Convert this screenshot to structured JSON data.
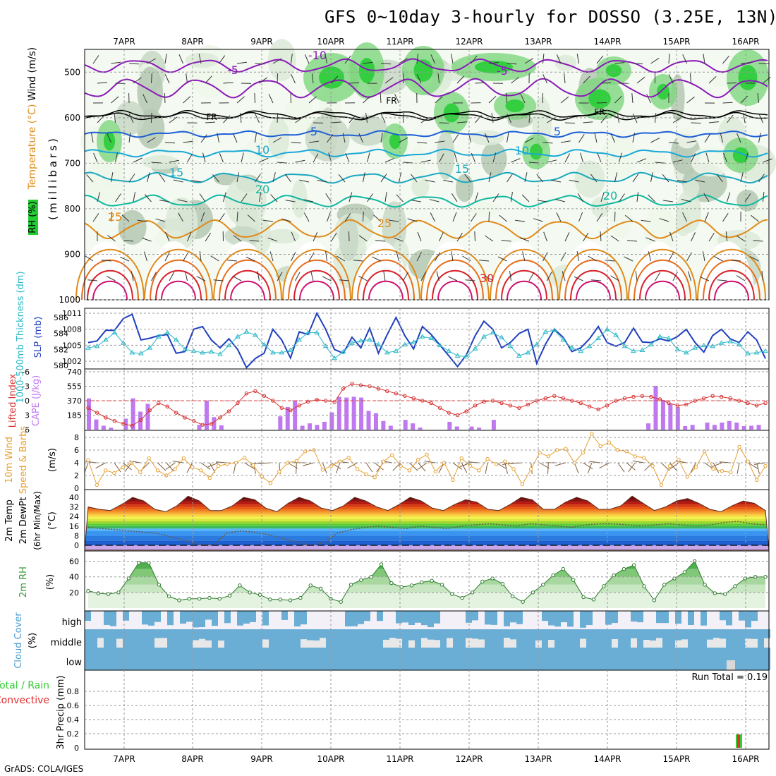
{
  "title": "GFS 0~10day 3-hourly for DOSSO (3.25E, 13N)",
  "credit": "GrADS: COLA/IGES",
  "colors": {
    "rh_green": "#22cc33",
    "temp_purple": "#8a1ab8",
    "temp_blue": "#1f5fd6",
    "temp_cyan": "#19a8d8",
    "temp_teal": "#10b8a0",
    "temp_orange": "#e08a1a",
    "temp_red": "#d8202a",
    "temp_magenta": "#d01070",
    "slp_blue": "#1f3fbf",
    "thick_cyan": "#2ab8c8",
    "cape_purple": "#c078f0",
    "li_red": "#d83030",
    "wind_orange": "#e8a030",
    "rh2m_green": "#3a9a3a",
    "cloud_blue": "#6aaed6",
    "precip_green": "#33cc33",
    "precip_red": "#e03030"
  },
  "chart_data": [
    {
      "type": "contour",
      "panel": "upper_air",
      "ylabel": "(millibars)",
      "legend_labels": [
        "Temperature (°C)",
        "Wind (m/s)",
        "RH (%)"
      ],
      "y_ticks": [
        "500",
        "600",
        "700",
        "800",
        "900",
        "1000"
      ],
      "x_dates": [
        "7APR",
        "8APR",
        "9APR",
        "10APR",
        "11APR",
        "12APR",
        "13APR",
        "14APR",
        "15APR",
        "16APR"
      ],
      "temperature_isotherm_labels": [
        "-10",
        "-5",
        "-5",
        "FR",
        "FR",
        "FR",
        "5",
        "5",
        "10",
        "10",
        "15",
        "15",
        "20",
        "20",
        "25",
        "25",
        "30"
      ],
      "ylim": [
        450,
        1000
      ]
    },
    {
      "type": "line",
      "panel": "slp_thickness",
      "ylabel_left": "1000-500mb Thickness (dm)",
      "ylabel_right": "SLP (mb)",
      "left_ticks": [
        "586",
        "584",
        "582",
        "580"
      ],
      "right_ticks": [
        "1011",
        "1008",
        "1005",
        "1002"
      ],
      "series": [
        {
          "name": "SLP (mb)",
          "values": [
            1005.5,
            1005.8,
            1007.8,
            1007.8,
            1010.0,
            1010.8,
            1006.0,
            1006.3,
            1006.8,
            1007.0,
            1003.5,
            1003.8,
            1008.0,
            1008.5,
            1006.0,
            1004.5,
            1006.2,
            1004.2,
            1000.8,
            1002.5,
            1003.5,
            1008.0,
            1006.0,
            1002.6,
            1007.5,
            1007.0,
            1011.0,
            1008.0,
            1004.2,
            1003.5,
            1006.5,
            1004.5,
            1008.2,
            1003.5,
            1007.0,
            1010.2,
            1006.8,
            1004.3,
            1008.5,
            1007.0,
            1005.0,
            1003.0,
            1001.0,
            1003.2,
            1006.8,
            1009.5,
            1008.0,
            1004.5,
            1005.5,
            1007.2,
            1008.0,
            1001.6,
            1005.2,
            1008.0,
            1006.5,
            1003.8,
            1004.5,
            1006.2,
            1008.5,
            1005.5,
            1004.8,
            1005.5,
            1008.2,
            1005.6,
            1005.5,
            1006.2,
            1005.8,
            1006.6,
            1008.0,
            1005.5,
            1003.7,
            1006.8,
            1008.0,
            1006.2,
            1005.5,
            1007.5,
            1006.0,
            1002.5
          ]
        },
        {
          "name": "Thickness (dm)",
          "values": [
            582.2,
            582.4,
            583.2,
            584.1,
            582.8,
            581.6,
            581.5,
            582.2,
            583.6,
            584.1,
            583.2,
            582.0,
            581.8,
            581.6,
            581.7,
            581.4,
            582.5,
            583.6,
            584.2,
            583.8,
            582.6,
            581.6,
            581.6,
            581.9,
            583.2,
            584.1,
            584.1,
            582.4,
            580.9,
            581.7,
            582.8,
            583.1,
            583.2,
            582.6,
            581.6,
            581.8,
            582.6,
            582.9,
            583.6,
            583.4,
            582.5,
            581.8,
            581.2,
            581.1,
            582.1,
            583.6,
            584.1,
            583.5,
            582.4,
            581.2,
            581.6,
            582.6,
            584.2,
            584.4,
            583.2,
            582.2,
            581.8,
            582.4,
            583.4,
            584.5,
            583.8,
            582.4,
            581.8,
            581.9,
            582.6,
            583.6,
            583.4,
            582.0,
            581.6,
            582.2,
            582.5,
            582.4,
            582.8,
            583.0,
            582.6,
            581.5,
            581.6,
            581.8
          ]
        }
      ]
    },
    {
      "type": "bar",
      "panel": "cape_li",
      "ylabel_left": "Lifted Index",
      "ylabel_right": "CAPE (J/kg)",
      "left_ticks": [
        "-6",
        "-3",
        "0",
        "3",
        "6"
      ],
      "right_ticks": [
        "740",
        "555",
        "370",
        "185"
      ],
      "series": [
        {
          "name": "CAPE (J/kg)",
          "values": [
            400,
            130,
            50,
            25,
            0,
            140,
            400,
            230,
            330,
            0,
            0,
            0,
            0,
            0,
            0,
            60,
            370,
            160,
            55,
            0,
            0,
            0,
            0,
            0,
            0,
            0,
            170,
            290,
            370,
            50,
            80,
            60,
            100,
            220,
            420,
            410,
            420,
            410,
            240,
            210,
            110,
            50,
            0,
            125,
            80,
            25,
            0,
            0,
            0,
            100,
            40,
            0,
            40,
            25,
            0,
            125,
            0,
            0,
            0,
            0,
            0,
            0,
            0,
            0,
            0,
            0,
            0,
            0,
            0,
            0,
            0,
            0,
            0,
            0,
            0,
            0,
            80,
            560,
            380,
            330,
            290,
            45,
            60,
            0,
            90,
            60,
            90,
            110,
            90,
            45,
            50,
            60,
            0
          ]
        },
        {
          "name": "Lifted Index",
          "values": [
            1.5,
            2.5,
            3.5,
            4.2,
            4.8,
            5.2,
            4.0,
            2.0,
            0.5,
            1.2,
            2.5,
            3.5,
            4.2,
            5.0,
            4.8,
            3.5,
            2.2,
            0.5,
            -1.5,
            -2.0,
            -1.0,
            0.0,
            1.5,
            2.0,
            1.0,
            0.2,
            -0.2,
            0.0,
            0.3,
            -2.5,
            -3.5,
            -3.2,
            -3.0,
            -2.5,
            -2.0,
            -1.5,
            -1.0,
            -0.5,
            0.0,
            0.5,
            1.5,
            2.5,
            3.0,
            2.2,
            1.0,
            0.2,
            0.0,
            0.5,
            1.0,
            1.5,
            0.8,
            0.0,
            -0.5,
            -1.0,
            -0.5,
            0.0,
            0.5,
            1.2,
            1.8,
            1.0,
            0.0,
            -0.5,
            -0.8,
            -1.0,
            -0.8,
            -0.3,
            0.5,
            1.0,
            0.8,
            0.0,
            -0.5,
            -1.0,
            -0.8,
            -0.5,
            0.0,
            0.5,
            1.0,
            0.5
          ]
        }
      ]
    },
    {
      "type": "line",
      "panel": "wind10m",
      "ylabel": "10m Wind Speed & Barbs (m/s)",
      "y_ticks": [
        "8",
        "6",
        "4",
        "2",
        "0"
      ],
      "series": [
        {
          "name": "10m wind speed (m/s)",
          "values": [
            4.4,
            0.5,
            2.8,
            2.4,
            3.3,
            4.0,
            2.5,
            4.7,
            2.8,
            2.0,
            3.0,
            4.7,
            3.3,
            2.8,
            1.6,
            3.5,
            3.8,
            4.0,
            4.8,
            3.6,
            1.8,
            0.8,
            2.6,
            4.0,
            4.3,
            5.8,
            6.0,
            2.9,
            3.5,
            4.2,
            4.8,
            3.0,
            2.2,
            1.7,
            4.2,
            5.2,
            3.5,
            2.8,
            4.5,
            5.3,
            2.6,
            4.0,
            1.3,
            4.7,
            3.5,
            2.8,
            4.6,
            3.8,
            4.2,
            3.0,
            0.6,
            3.0,
            5.6,
            5.0,
            6.0,
            6.2,
            4.0,
            5.6,
            8.6,
            6.6,
            7.2,
            6.0,
            5.8,
            5.0,
            4.8,
            3.5,
            0.5,
            3.5,
            4.5,
            1.8,
            3.3,
            5.8,
            3.0,
            2.7,
            2.5,
            6.5,
            4.2,
            1.3,
            3.5
          ]
        }
      ]
    },
    {
      "type": "area",
      "panel": "temp2m",
      "ylabel": "2m Temp 2m DewPt (6hr Min/Max) (°C)",
      "y_ticks": [
        "40",
        "32",
        "24",
        "16",
        "8",
        "0"
      ],
      "series": [
        {
          "name": "2m Temp (°C)",
          "values": [
            32,
            30,
            29,
            34,
            40,
            37,
            30,
            28,
            33,
            41,
            37,
            29,
            29,
            33,
            40,
            38,
            31,
            28,
            35,
            40,
            37,
            31,
            29,
            33,
            40,
            37,
            32,
            29,
            34,
            40,
            37,
            31,
            29,
            34,
            38,
            36,
            30,
            29,
            34,
            40,
            38,
            30,
            30,
            36,
            40,
            37,
            30,
            30,
            33,
            41,
            35,
            29,
            32,
            37,
            39,
            35,
            30,
            28,
            33,
            37,
            35,
            29
          ]
        },
        {
          "name": "2m DewPt (°C)",
          "values": [
            15,
            14,
            13,
            12,
            11,
            10,
            7,
            4,
            1,
            0,
            10,
            12,
            11,
            9,
            6,
            3,
            0,
            2,
            10,
            13,
            15,
            16,
            15,
            14,
            16,
            15,
            14,
            16,
            17,
            18,
            17,
            16,
            18,
            17,
            16,
            15,
            17,
            18,
            18,
            17,
            16,
            17,
            18,
            17,
            16,
            17,
            19,
            20,
            18,
            17
          ]
        }
      ]
    },
    {
      "type": "area",
      "panel": "rh2m",
      "ylabel": "2m RH (%)",
      "y_ticks": [
        "60",
        "40",
        "20"
      ],
      "series": [
        {
          "name": "2m RH (%)",
          "values": [
            22,
            19,
            18,
            20,
            38,
            58,
            58,
            30,
            15,
            10,
            12,
            12,
            13,
            12,
            16,
            29,
            20,
            17,
            11,
            11,
            10,
            13,
            29,
            25,
            12,
            8,
            30,
            36,
            40,
            56,
            32,
            27,
            29,
            33,
            35,
            30,
            18,
            13,
            20,
            34,
            38,
            31,
            15,
            8,
            20,
            30,
            42,
            50,
            36,
            14,
            11,
            28,
            42,
            50,
            55,
            28,
            10,
            30,
            38,
            46,
            60,
            30,
            19,
            18,
            28,
            38,
            40,
            40
          ]
        }
      ]
    },
    {
      "type": "heatmap",
      "panel": "cloud",
      "ylabel": "Cloud Cover (%)",
      "y_labels": [
        "high",
        "middle",
        "low"
      ]
    },
    {
      "type": "bar",
      "panel": "precip",
      "ylabel": "3hr Precip (mm)",
      "legend_labels": [
        "Total / Rain",
        "Convective"
      ],
      "y_ticks": [
        "0.8",
        "0.6",
        "0.4",
        "0.2",
        "0"
      ],
      "run_total": "Run Total = 0.19",
      "x_dates": [
        "7APR",
        "8APR",
        "9APR",
        "10APR",
        "11APR",
        "12APR",
        "13APR",
        "14APR",
        "15APR",
        "16APR"
      ],
      "series": [
        {
          "name": "Total / Rain",
          "values": [
            0.19
          ]
        },
        {
          "name": "Convective",
          "values": [
            0.19
          ]
        }
      ]
    }
  ]
}
